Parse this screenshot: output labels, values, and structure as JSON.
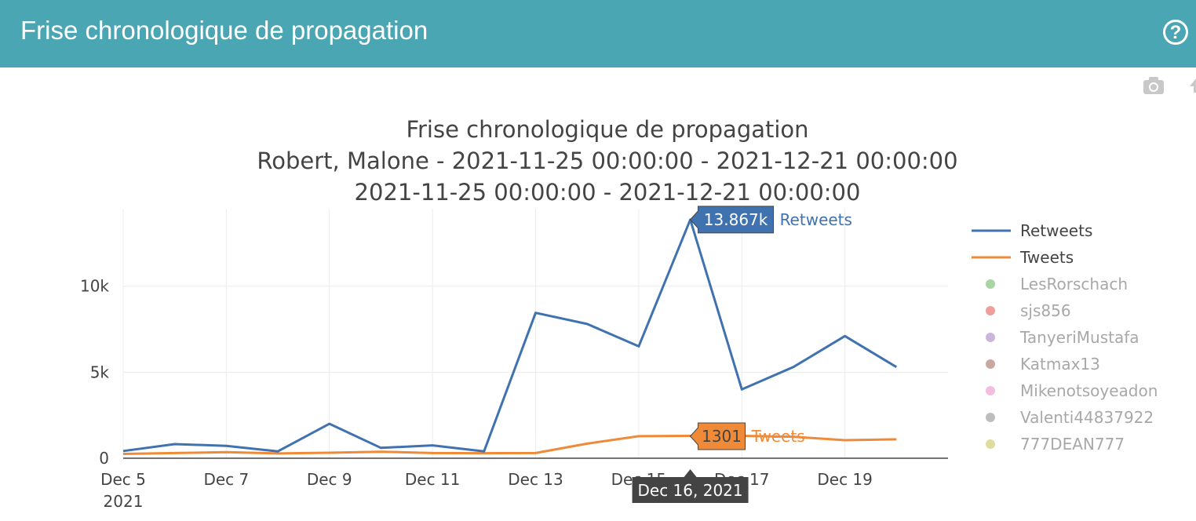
{
  "header": {
    "title": "Frise chronologique de propagation",
    "help_icon": "help-circle-icon",
    "help_glyph": "?",
    "background": "#4aa6b2"
  },
  "toolbar": {
    "camera_icon": "camera-icon"
  },
  "chart_data": {
    "type": "line",
    "title": [
      "Frise chronologique de propagation",
      "Robert, Malone - 2021-11-25 00:00:00 - 2021-12-21 00:00:00",
      "2021-11-25 00:00:00 - 2021-12-21 00:00:00"
    ],
    "x": [
      "2021-12-05",
      "2021-12-06",
      "2021-12-07",
      "2021-12-08",
      "2021-12-09",
      "2021-12-10",
      "2021-12-11",
      "2021-12-12",
      "2021-12-13",
      "2021-12-14",
      "2021-12-15",
      "2021-12-16",
      "2021-12-17",
      "2021-12-18",
      "2021-12-19",
      "2021-12-20"
    ],
    "series": [
      {
        "name": "Retweets",
        "color": "#3f72af",
        "values": [
          420,
          820,
          720,
          400,
          2000,
          600,
          750,
          400,
          8450,
          7800,
          6500,
          13867,
          4000,
          5300,
          7100,
          5300
        ]
      },
      {
        "name": "Tweets",
        "color": "#ef8a38",
        "values": [
          250,
          300,
          350,
          280,
          320,
          380,
          300,
          290,
          300,
          850,
          1280,
          1301,
          1300,
          1250,
          1050,
          1100
        ]
      }
    ],
    "legend": {
      "placement": "right",
      "entries": [
        {
          "name": "Retweets",
          "kind": "line",
          "color": "#3f72af",
          "muted": false
        },
        {
          "name": "Tweets",
          "kind": "line",
          "color": "#ef8a38",
          "muted": false
        },
        {
          "name": "LesRorschach",
          "kind": "dot",
          "color": "#a9d4a3",
          "muted": true
        },
        {
          "name": "sjs856",
          "kind": "dot",
          "color": "#ee9f9a",
          "muted": true
        },
        {
          "name": "TanyeriMustafa",
          "kind": "dot",
          "color": "#c9b5de",
          "muted": true
        },
        {
          "name": "Katmax13",
          "kind": "dot",
          "color": "#c8a8a1",
          "muted": true
        },
        {
          "name": "Mikenotsoyeadon",
          "kind": "dot",
          "color": "#f3bde0",
          "muted": true
        },
        {
          "name": "Valenti44837922",
          "kind": "dot",
          "color": "#bdbdbd",
          "muted": true
        },
        {
          "name": "777DEAN777",
          "kind": "dot",
          "color": "#dedd9e",
          "muted": true
        }
      ]
    },
    "x_ticks": [
      {
        "date": "2021-12-05",
        "label": "Dec 5",
        "sub": "2021"
      },
      {
        "date": "2021-12-07",
        "label": "Dec 7",
        "sub": ""
      },
      {
        "date": "2021-12-09",
        "label": "Dec 9",
        "sub": ""
      },
      {
        "date": "2021-12-11",
        "label": "Dec 11",
        "sub": ""
      },
      {
        "date": "2021-12-13",
        "label": "Dec 13",
        "sub": ""
      },
      {
        "date": "2021-12-15",
        "label": "Dec 15",
        "sub": ""
      },
      {
        "date": "2021-12-17",
        "label": "Dec 17",
        "sub": ""
      },
      {
        "date": "2021-12-19",
        "label": "Dec 19",
        "sub": ""
      }
    ],
    "y_ticks": [
      {
        "value": 0,
        "label": "0"
      },
      {
        "value": 5000,
        "label": "5k"
      },
      {
        "value": 10000,
        "label": "10k"
      }
    ],
    "xlim": [
      "2021-12-05",
      "2021-12-21"
    ],
    "ylim": [
      0,
      14500
    ],
    "grid": true,
    "hover": {
      "x": "2021-12-16",
      "x_label": "Dec 16, 2021",
      "items": [
        {
          "series": "Retweets",
          "value_label": "13.867k",
          "name": "Retweets"
        },
        {
          "series": "Tweets",
          "value_label": "1301",
          "name": "Tweets"
        }
      ]
    }
  }
}
